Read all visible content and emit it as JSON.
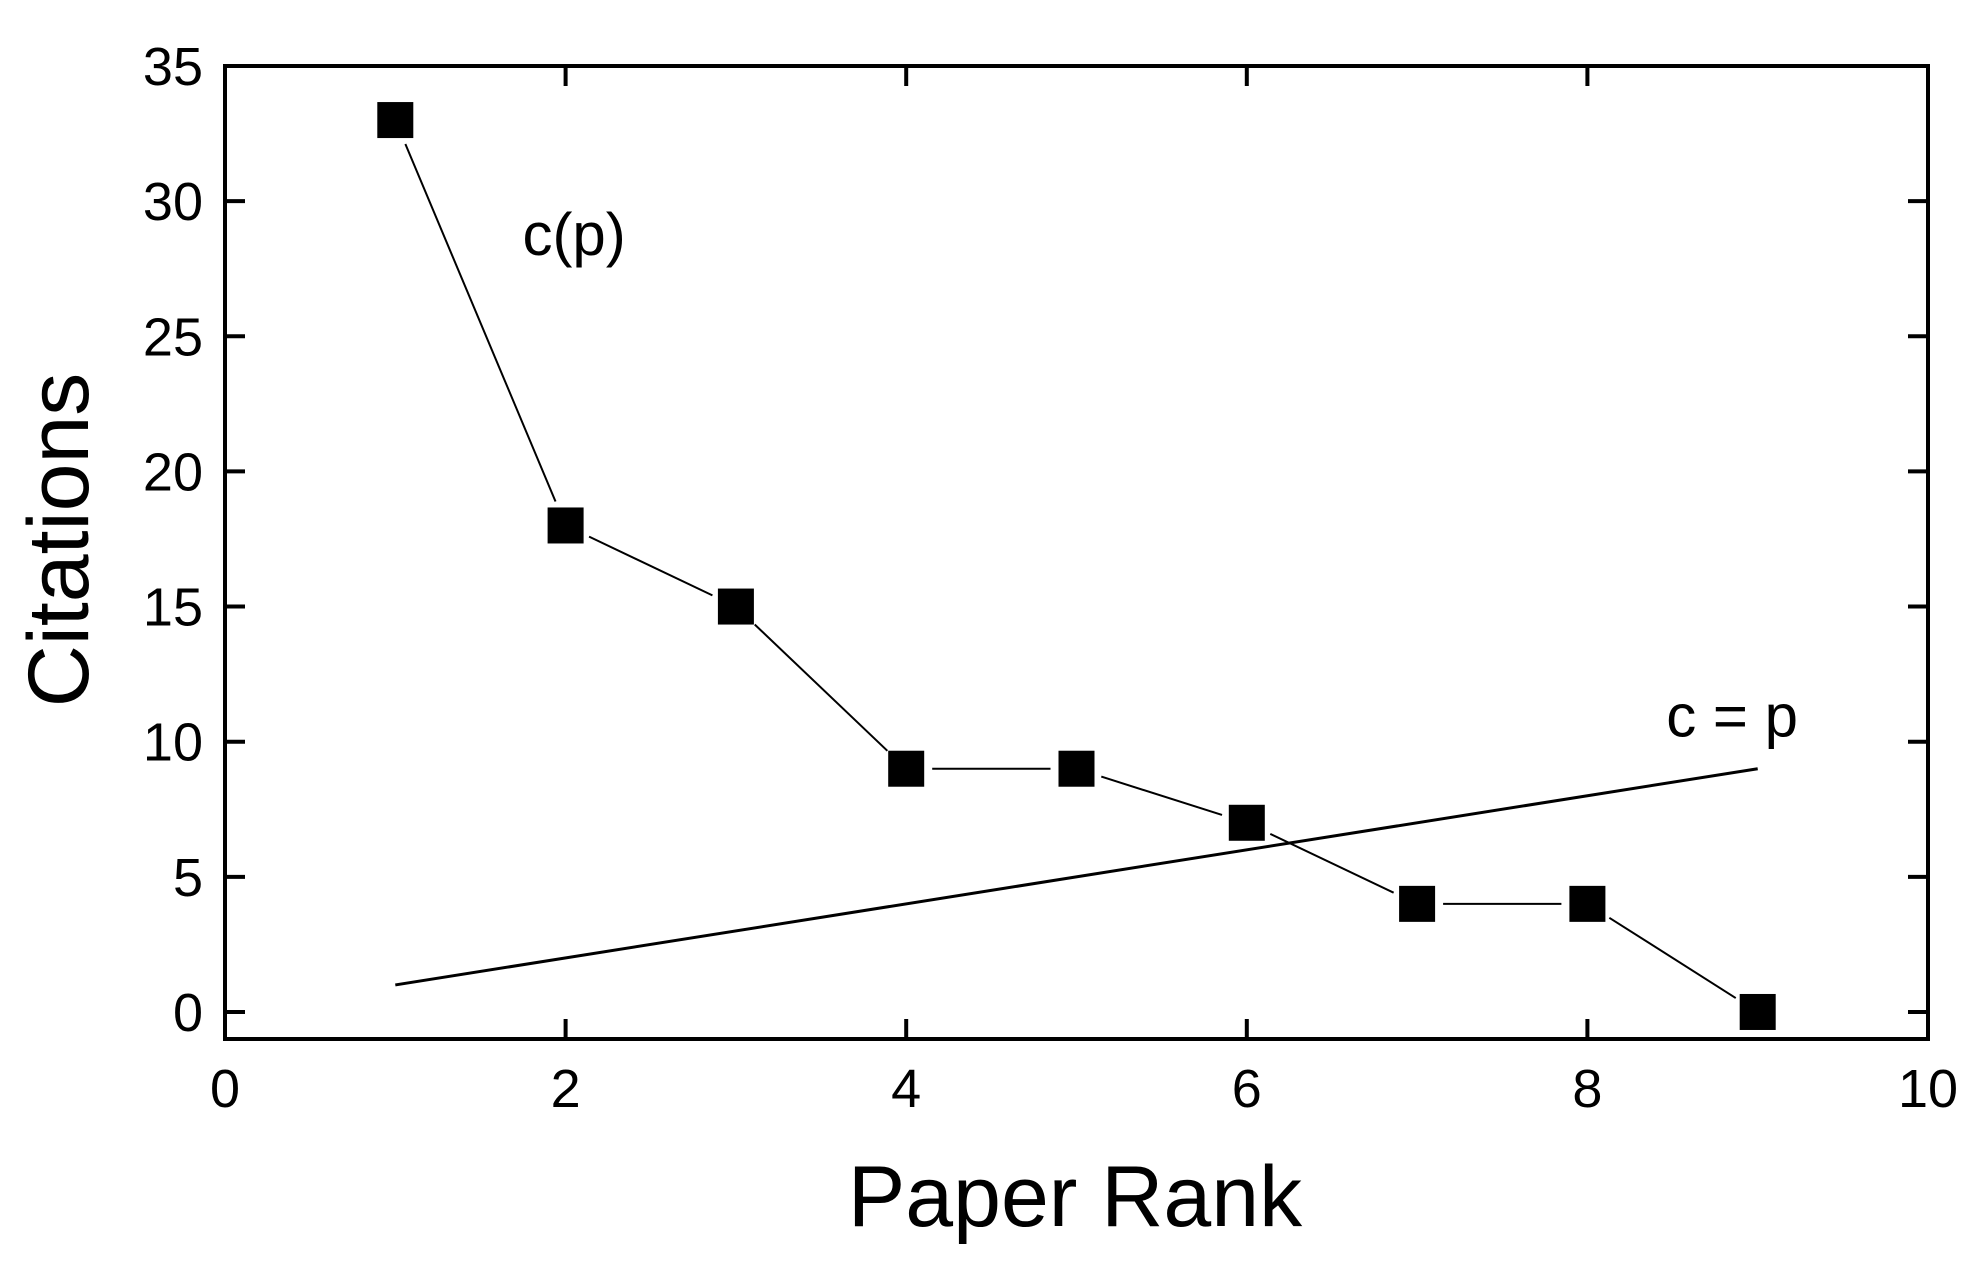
{
  "chart_data": {
    "type": "scatter",
    "xlabel": "Paper Rank",
    "ylabel": "Citations",
    "xlim": [
      0,
      10
    ],
    "ylim": [
      -1,
      35
    ],
    "xticks": [
      0,
      2,
      4,
      6,
      8,
      10
    ],
    "yticks": [
      0,
      5,
      10,
      15,
      20,
      25,
      30,
      35
    ],
    "grid": false,
    "series": [
      {
        "name": "c(p)",
        "mode": "line-markers",
        "marker": "square",
        "x": [
          1,
          2,
          3,
          4,
          5,
          6,
          7,
          8,
          9
        ],
        "y": [
          33,
          18,
          15,
          9,
          9,
          7,
          4,
          4,
          0
        ]
      },
      {
        "name": "c = p",
        "mode": "line",
        "x": [
          1,
          9
        ],
        "y": [
          1,
          9
        ]
      }
    ],
    "annotations": [
      {
        "text": "c(p)",
        "x": 2.05,
        "y": 28.0
      },
      {
        "text": "c = p",
        "x": 8.85,
        "y": 10.2
      }
    ],
    "colors": {
      "line": "#000000",
      "marker": "#000000",
      "background": "#ffffff"
    }
  }
}
